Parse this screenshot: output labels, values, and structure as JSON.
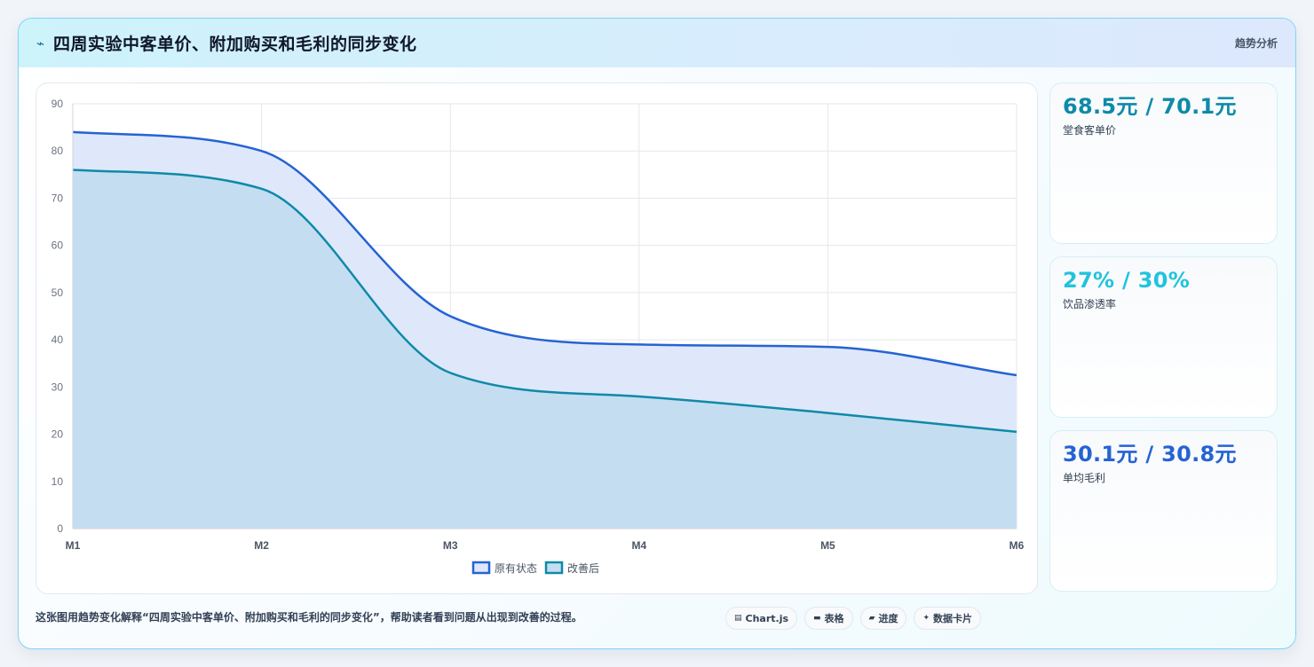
{
  "header": {
    "icon": "⌁",
    "title": "四周实验中客单价、附加购买和毛利的同步变化",
    "tag": "趋势分析"
  },
  "chart_data": {
    "type": "area",
    "categories": [
      "M1",
      "M2",
      "M3",
      "M4",
      "M5",
      "M6"
    ],
    "series": [
      {
        "name": "原有状态",
        "values": [
          84,
          80,
          45,
          39,
          38.5,
          32.5
        ],
        "color": "#2563d4",
        "fill": "#dfe8fb"
      },
      {
        "name": "改善后",
        "values": [
          76,
          72,
          33,
          28,
          24.5,
          20.5
        ],
        "color": "#0e8aa8",
        "fill": "#c5ddf1"
      }
    ],
    "ylim": [
      0,
      90
    ],
    "yticks": [
      0,
      10,
      20,
      30,
      40,
      50,
      60,
      70,
      80,
      90
    ],
    "grid": true,
    "legend": "bottom"
  },
  "stats": [
    {
      "value": "68.5元 / 70.1元",
      "label": "堂食客单价",
      "color": "#0e8aa8"
    },
    {
      "value": "27% / 30%",
      "label": "饮品渗透率",
      "color": "#22c3dd"
    },
    {
      "value": "30.1元 / 30.8元",
      "label": "单均毛利",
      "color": "#2563d4"
    }
  ],
  "caption": "这张图用趋势变化解释“四周实验中客单价、附加购买和毛利的同步变化”，帮助读者看到问题从出现到改善的过程。",
  "chips": [
    {
      "icon": "▤",
      "label": "Chart.js"
    },
    {
      "icon": "▬",
      "label": "表格"
    },
    {
      "icon": "▰",
      "label": "进度"
    },
    {
      "icon": "✦",
      "label": "数据卡片"
    }
  ]
}
